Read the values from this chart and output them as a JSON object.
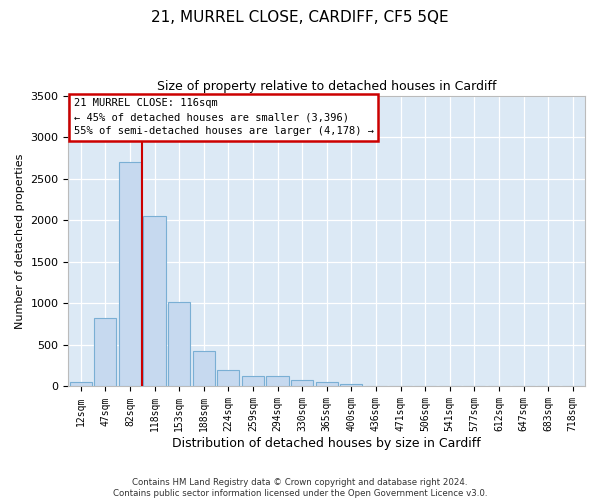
{
  "title1": "21, MURREL CLOSE, CARDIFF, CF5 5QE",
  "title2": "Size of property relative to detached houses in Cardiff",
  "xlabel": "Distribution of detached houses by size in Cardiff",
  "ylabel": "Number of detached properties",
  "footnote": "Contains HM Land Registry data © Crown copyright and database right 2024.\nContains public sector information licensed under the Open Government Licence v3.0.",
  "bin_labels": [
    "12sqm",
    "47sqm",
    "82sqm",
    "118sqm",
    "153sqm",
    "188sqm",
    "224sqm",
    "259sqm",
    "294sqm",
    "330sqm",
    "365sqm",
    "400sqm",
    "436sqm",
    "471sqm",
    "506sqm",
    "541sqm",
    "577sqm",
    "612sqm",
    "647sqm",
    "683sqm",
    "718sqm"
  ],
  "bar_values": [
    50,
    820,
    2700,
    2050,
    1020,
    430,
    200,
    130,
    130,
    80,
    50,
    30,
    10,
    5,
    0,
    0,
    0,
    0,
    0,
    0,
    0
  ],
  "bar_color": "#c6d9ef",
  "bar_edge_color": "#7aafd4",
  "vline_color": "#cc0000",
  "vline_x": 2.5,
  "annotation_title": "21 MURREL CLOSE: 116sqm",
  "annotation_line1": "← 45% of detached houses are smaller (3,396)",
  "annotation_line2": "55% of semi-detached houses are larger (4,178) →",
  "annotation_box_facecolor": "#ffffff",
  "annotation_box_edgecolor": "#cc0000",
  "ylim": [
    0,
    3500
  ],
  "yticks": [
    0,
    500,
    1000,
    1500,
    2000,
    2500,
    3000,
    3500
  ],
  "fig_facecolor": "#ffffff",
  "ax_facecolor": "#dce9f5",
  "title1_fontsize": 11,
  "title2_fontsize": 9
}
